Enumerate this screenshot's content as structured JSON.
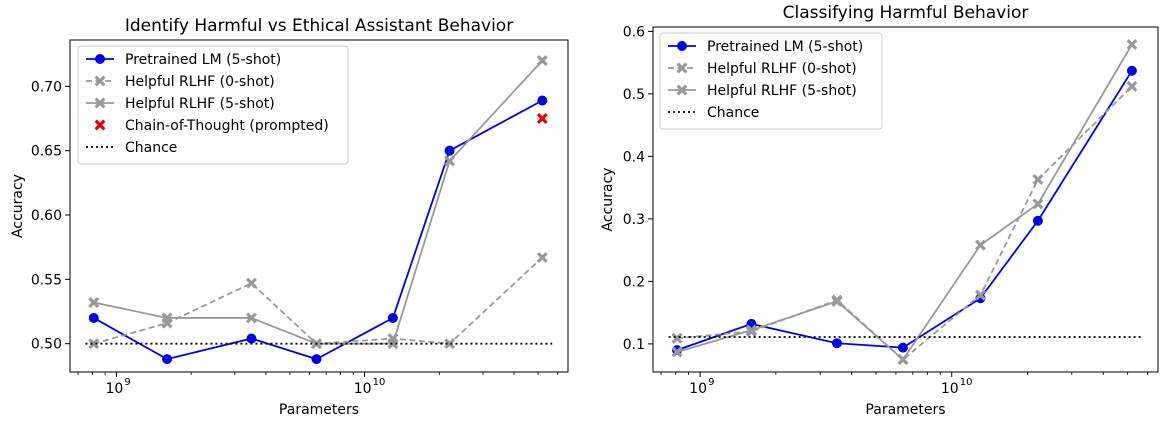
{
  "chart_data": [
    {
      "type": "line",
      "title": "Identify Harmful vs Ethical Assistant Behavior",
      "xlabel": "Parameters",
      "ylabel": "Accuracy",
      "xscale": "log",
      "xlim": [
        650000000,
        66000000000
      ],
      "ylim": [
        0.478,
        0.736
      ],
      "x_ticks": [
        {
          "value": 1000000000,
          "label": "10",
          "exp": "9"
        },
        {
          "value": 10000000000,
          "label": "10",
          "exp": "10"
        }
      ],
      "y_ticks": [
        {
          "value": 0.5,
          "label": "0.50"
        },
        {
          "value": 0.55,
          "label": "0.55"
        },
        {
          "value": 0.6,
          "label": "0.60"
        },
        {
          "value": 0.65,
          "label": "0.65"
        },
        {
          "value": 0.7,
          "label": "0.70"
        }
      ],
      "legend_position": "top-left",
      "series": [
        {
          "name": "Pretrained LM (5-shot)",
          "color": "#0000ee",
          "dash": "solid",
          "marker": "circle",
          "x": [
            810000000,
            1600000000,
            3500000000,
            6400000000,
            13000000000,
            22000000000,
            52000000000
          ],
          "y": [
            0.52,
            0.488,
            0.504,
            0.488,
            0.52,
            0.65,
            0.689
          ]
        },
        {
          "name": "Helpful RLHF (0-shot)",
          "color": "#999999",
          "dash": "dashed",
          "marker": "x",
          "x": [
            810000000,
            1600000000,
            3500000000,
            6400000000,
            13000000000,
            22000000000,
            52000000000
          ],
          "y": [
            0.5,
            0.516,
            0.547,
            0.5,
            0.504,
            0.5,
            0.567
          ]
        },
        {
          "name": "Helpful RLHF (5-shot)",
          "color": "#999999",
          "dash": "solid",
          "marker": "x",
          "x": [
            810000000,
            1600000000,
            3500000000,
            6400000000,
            13000000000,
            22000000000,
            52000000000
          ],
          "y": [
            0.532,
            0.52,
            0.52,
            0.5,
            0.5,
            0.642,
            0.72
          ]
        },
        {
          "name": "Chain-of-Thought (prompted)",
          "color": "#ee0000",
          "dash": "none",
          "marker": "x",
          "x": [
            52000000000
          ],
          "y": [
            0.675
          ]
        },
        {
          "name": "Chance",
          "color": "#000000",
          "dash": "dotted",
          "marker": "none",
          "x": [
            750000000,
            57000000000
          ],
          "y": [
            0.5,
            0.5
          ]
        }
      ]
    },
    {
      "type": "line",
      "title": "Classifying Harmful Behavior",
      "xlabel": "Parameters",
      "ylabel": "Accuracy",
      "xscale": "log",
      "xlim": [
        650000000,
        66000000000
      ],
      "ylim": [
        0.055,
        0.607
      ],
      "x_ticks": [
        {
          "value": 1000000000,
          "label": "10",
          "exp": "9"
        },
        {
          "value": 10000000000,
          "label": "10",
          "exp": "10"
        }
      ],
      "y_ticks": [
        {
          "value": 0.1,
          "label": "0.1"
        },
        {
          "value": 0.2,
          "label": "0.2"
        },
        {
          "value": 0.3,
          "label": "0.3"
        },
        {
          "value": 0.4,
          "label": "0.4"
        },
        {
          "value": 0.5,
          "label": "0.5"
        },
        {
          "value": 0.6,
          "label": "0.6"
        }
      ],
      "legend_position": "top-left",
      "series": [
        {
          "name": "Pretrained LM (5-shot)",
          "color": "#0000ee",
          "dash": "solid",
          "marker": "circle",
          "x": [
            810000000,
            1600000000,
            3500000000,
            6400000000,
            13000000000,
            22000000000,
            52000000000
          ],
          "y": [
            0.09,
            0.132,
            0.101,
            0.094,
            0.173,
            0.297,
            0.537
          ]
        },
        {
          "name": "Helpful RLHF (0-shot)",
          "color": "#999999",
          "dash": "dashed",
          "marker": "x",
          "x": [
            810000000,
            1600000000,
            3500000000,
            6400000000,
            13000000000,
            22000000000,
            52000000000
          ],
          "y": [
            0.109,
            0.12,
            0.17,
            0.075,
            0.178,
            0.363,
            0.512
          ]
        },
        {
          "name": "Helpful RLHF (5-shot)",
          "color": "#999999",
          "dash": "solid",
          "marker": "x",
          "x": [
            810000000,
            1600000000,
            3500000000,
            6400000000,
            13000000000,
            22000000000,
            52000000000
          ],
          "y": [
            0.087,
            0.122,
            0.168,
            0.075,
            0.258,
            0.324,
            0.579
          ]
        },
        {
          "name": "Chance",
          "color": "#000000",
          "dash": "dotted",
          "marker": "none",
          "x": [
            750000000,
            57000000000
          ],
          "y": [
            0.111,
            0.111
          ]
        }
      ]
    }
  ]
}
